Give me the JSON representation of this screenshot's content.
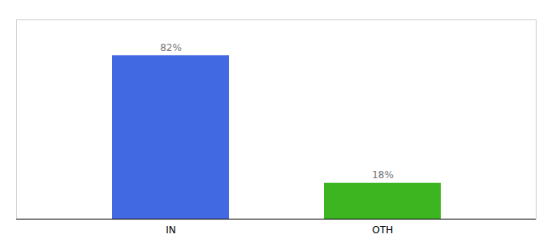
{
  "chart_data": {
    "type": "bar",
    "categories": [
      "IN",
      "OTH"
    ],
    "values": [
      82,
      18
    ],
    "value_labels": [
      "82%",
      "18%"
    ],
    "colors": [
      "#4169e1",
      "#3cb520"
    ],
    "ylim": [
      0,
      100
    ],
    "data_labels": true,
    "tick_labels": "x"
  }
}
